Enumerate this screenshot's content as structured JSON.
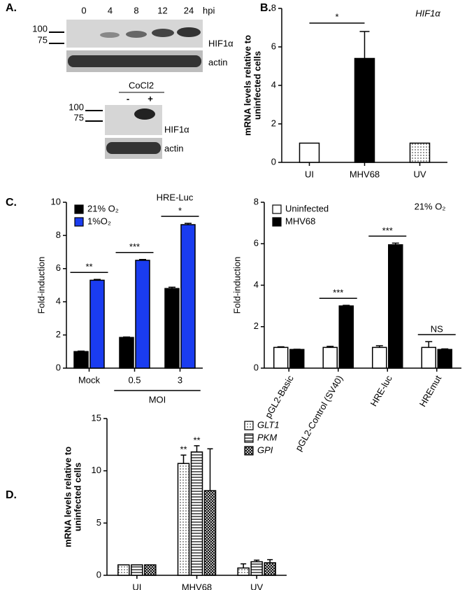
{
  "panel_labels": [
    "A.",
    "B.",
    "C.",
    "D."
  ],
  "blot": {
    "lanes": [
      "0",
      "4",
      "8",
      "12",
      "24"
    ],
    "unit": "hpi",
    "markers": [
      "100",
      "75"
    ],
    "bands": [
      "HIF1α",
      "actin"
    ],
    "cocl2": {
      "title": "CoCl2",
      "lanes": [
        "-",
        "+"
      ],
      "markers": [
        "100",
        "75"
      ],
      "bands": [
        "HIF1α",
        "actin"
      ]
    }
  },
  "chart_data": [
    {
      "type": "bar",
      "title": "HIF1α",
      "ylabel": [
        "mRNA levels relative to",
        "uninfected cells"
      ],
      "categories": [
        "UI",
        "MHV68",
        "UV"
      ],
      "values": [
        1,
        5.4,
        1
      ],
      "errors": [
        null,
        1.4,
        null
      ],
      "colors": [
        "#ffffff",
        "#000000",
        "#d9d9d9"
      ],
      "patterns": [
        null,
        null,
        "dots"
      ],
      "ylim": [
        0,
        8
      ],
      "yticks": [
        0,
        2,
        4,
        6,
        8
      ],
      "comparison": {
        "text": "*",
        "from": "UI",
        "to": "MHV68"
      }
    },
    {
      "type": "bar",
      "title": "HRE-Luc",
      "ylabel": [
        "Fold-induction"
      ],
      "legend": "upper left",
      "categories": [
        "Mock",
        "0.5",
        "3"
      ],
      "series": [
        {
          "name": "21% O₂",
          "color": "#000000",
          "values": [
            1,
            1.85,
            4.8
          ],
          "errors": [
            0.03,
            0.03,
            0.08
          ]
        },
        {
          "name": "1%O₂",
          "color": "#1a3cf0",
          "values": [
            5.3,
            6.5,
            8.65
          ],
          "errors": [
            0.05,
            0.05,
            0.08
          ]
        }
      ],
      "significance": [
        "**",
        "***",
        "*"
      ],
      "x_group_label": {
        "text": "MOI",
        "categories": [
          "0.5",
          "3"
        ]
      },
      "ylim": [
        0,
        10
      ],
      "yticks": [
        0,
        2,
        4,
        6,
        8,
        10
      ]
    },
    {
      "type": "bar",
      "title": "21% O₂",
      "ylabel": [
        "Fold-induction"
      ],
      "legend": "upper left",
      "rotate_labels": true,
      "categories": [
        "pGL2-Basic",
        "pGL2-Control (SV40)",
        "HRE-luc",
        "HREmut"
      ],
      "series": [
        {
          "name": "Uninfected",
          "color": "#ffffff",
          "values": [
            1,
            1,
            1,
            1
          ],
          "errors": [
            0.03,
            0.05,
            0.08,
            0.28
          ]
        },
        {
          "name": "MHV68",
          "color": "#000000",
          "values": [
            0.9,
            3.0,
            5.95,
            0.9
          ],
          "errors": [
            0.01,
            0.03,
            0.08,
            0.03
          ]
        }
      ],
      "significance": [
        null,
        "***",
        "***",
        "NS"
      ],
      "ylim": [
        0,
        8
      ],
      "yticks": [
        0,
        2,
        4,
        6,
        8
      ]
    },
    {
      "type": "bar",
      "ylabel": [
        "mRNA levels relative to",
        "uninfected cells"
      ],
      "legend": "upper right",
      "categories": [
        "UI",
        "MHV68",
        "UV"
      ],
      "series": [
        {
          "name": "GLT1",
          "color": "#ffffff",
          "pattern": "dots",
          "values": [
            1,
            10.7,
            0.7
          ],
          "errors": [
            null,
            0.8,
            0.4
          ],
          "significance": [
            null,
            "**",
            null
          ]
        },
        {
          "name": "PKM",
          "color": "#ffffff",
          "pattern": "stripes",
          "values": [
            1,
            11.8,
            1.3
          ],
          "errors": [
            null,
            0.6,
            0.15
          ],
          "significance": [
            null,
            "**",
            null
          ]
        },
        {
          "name": "GPI",
          "color": "#ffffff",
          "pattern": "crosshatch",
          "values": [
            1,
            8.1,
            1.2
          ],
          "errors": [
            null,
            4.0,
            0.3
          ]
        }
      ],
      "ylim": [
        0,
        15
      ],
      "yticks": [
        0,
        5,
        10,
        15
      ]
    }
  ]
}
